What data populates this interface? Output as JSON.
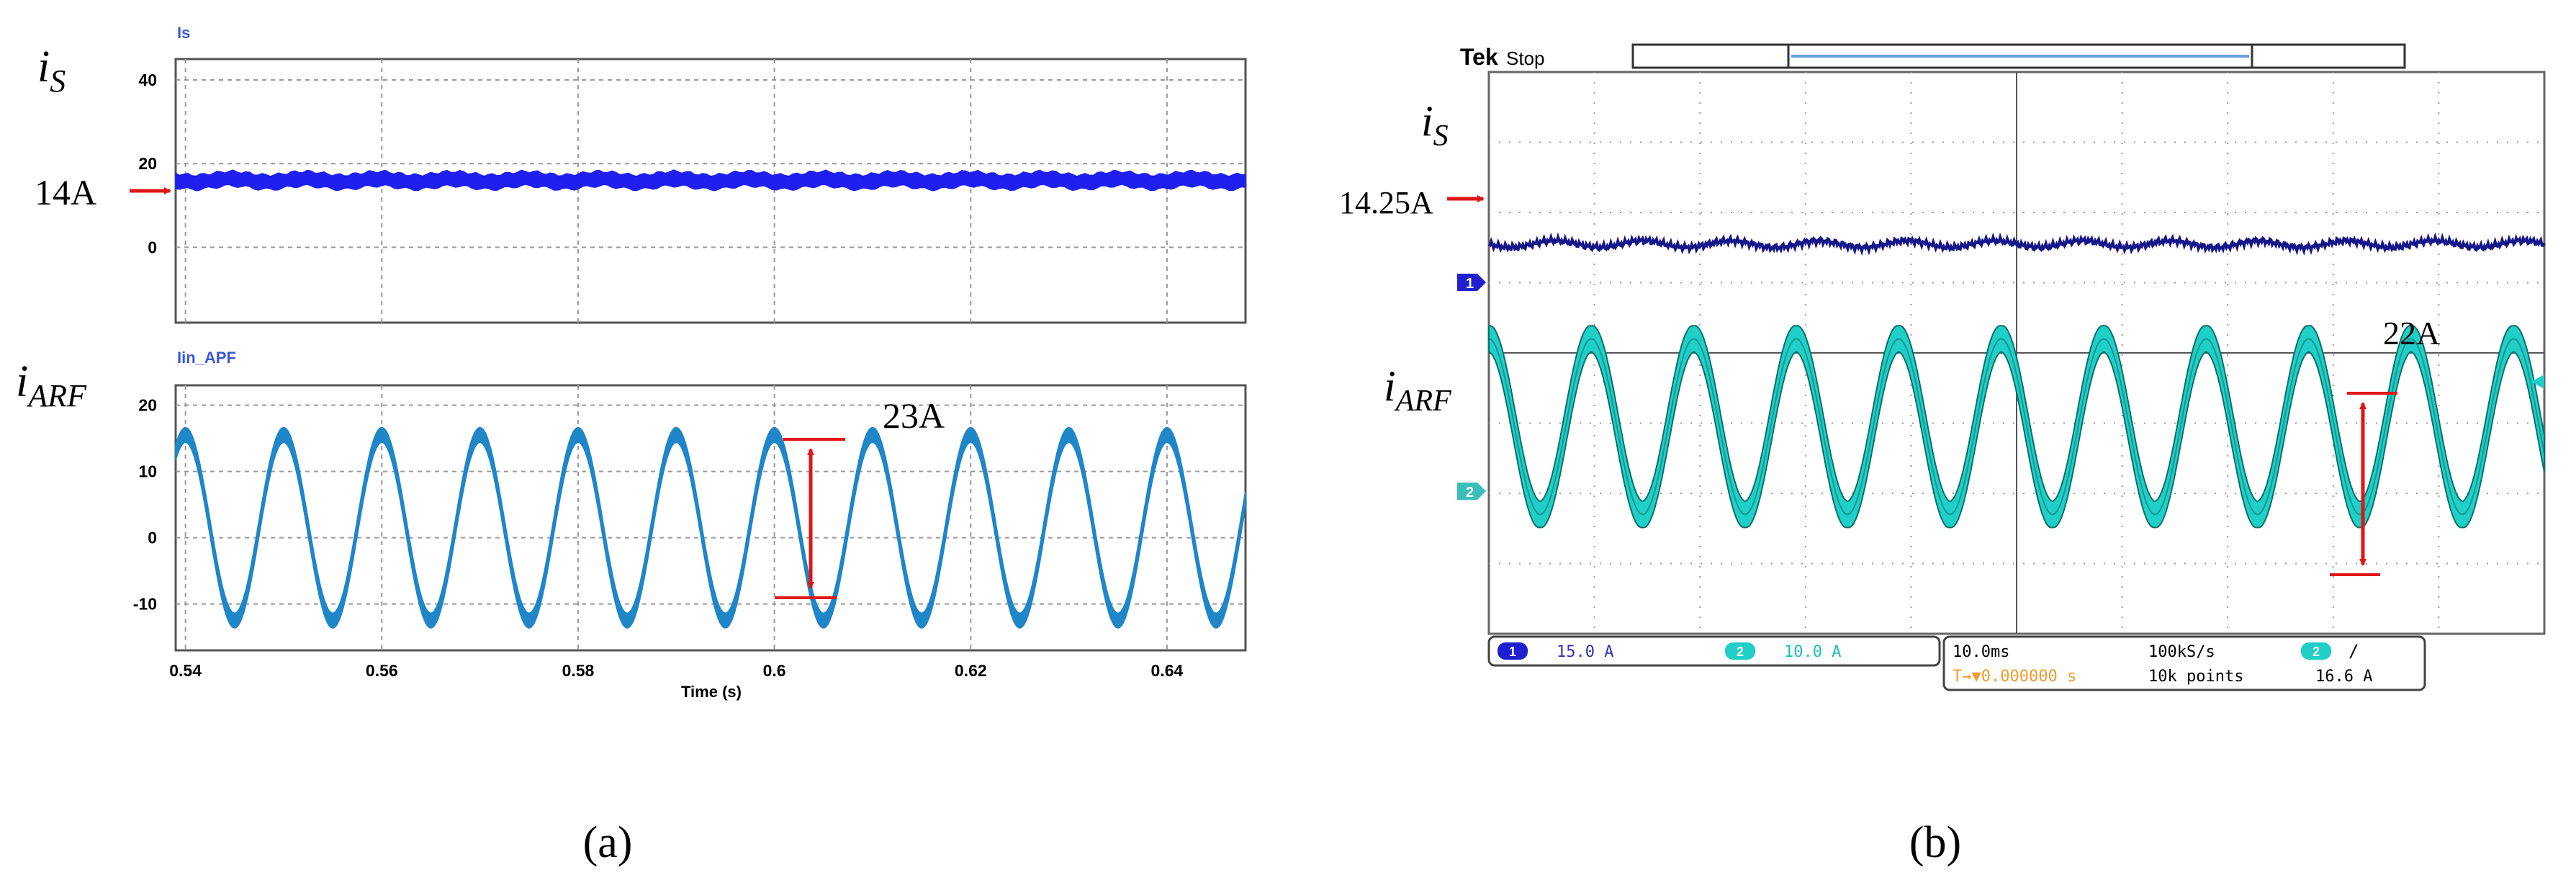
{
  "figure": {
    "panel_a_label": "(a)",
    "panel_b_label": "(b)"
  },
  "colors": {
    "sim_is": "#1f1ff0",
    "sim_iarf": "#1f86c8",
    "sim_label": "#3b59d8",
    "scope_ch1": "#16168a",
    "scope_ch2": "#1fcfc8",
    "scope_ch2_dark": "#0f6f6a",
    "scope_grid": "#9a9a9a",
    "scope_trigger": "#f29a2e",
    "annotation": "#e01515"
  },
  "panel_a": {
    "left_labels": {
      "is_main": "i",
      "is_sub": "S",
      "iarf_main": "i",
      "iarf_sub": "ARF"
    },
    "annotations": {
      "is_value": "14A",
      "iarf_pp": "23A"
    },
    "xlabel": "Time (s)"
  },
  "panel_b": {
    "left_labels": {
      "is_main": "i",
      "is_sub": "S",
      "iarf_main": "i",
      "iarf_sub": "ARF"
    },
    "annotations": {
      "is_value": "14.25A",
      "iarf_pp": "22A"
    },
    "header": {
      "brand": "Tek",
      "state": "Stop"
    },
    "markers": {
      "ch1": "1",
      "ch2": "2",
      "trigger": "T"
    },
    "readout": {
      "ch1_num": "1",
      "ch1_scale": "15.0 A",
      "ch2_num": "2",
      "ch2_scale": "10.0 A",
      "timebase": "10.0ms",
      "sample_rate": "100kS/s",
      "trig_num": "2",
      "trig_slope": "/",
      "trig_pos": "T→▼0.000000 s",
      "record": "10k points",
      "trig_level": "16.6 A"
    }
  },
  "chart_data": [
    {
      "type": "line",
      "title": "Is",
      "xlabel": "",
      "ylabel": "",
      "xlim": [
        0.539,
        0.648
      ],
      "ylim": [
        -18,
        45
      ],
      "yticks": [
        0,
        20,
        40
      ],
      "xticks": [
        0.54,
        0.56,
        0.58,
        0.6,
        0.62,
        0.64
      ],
      "grid": true,
      "series": [
        {
          "name": "Is",
          "x": [
            0.539,
            0.648
          ],
          "y": [
            16.0,
            16.0
          ],
          "ripple_band": 3.5
        }
      ]
    },
    {
      "type": "line",
      "title": "Iin_APF",
      "xlabel": "Time (s)",
      "ylabel": "",
      "xlim": [
        0.539,
        0.648
      ],
      "ylim": [
        -17,
        23
      ],
      "yticks": [
        -10,
        0,
        10,
        20
      ],
      "xticks": [
        0.54,
        0.56,
        0.58,
        0.6,
        0.62,
        0.64
      ],
      "xticklabels": [
        "0.54",
        "0.56",
        "0.58",
        "0.6",
        "0.62",
        "0.64"
      ],
      "grid": true,
      "series": [
        {
          "name": "Iin_APF",
          "function": "sine",
          "offset": 1.5,
          "amplitude": 14.0,
          "frequency_hz": 100,
          "phase_peak_x": 0.54,
          "band": 2.2
        }
      ]
    },
    {
      "type": "line",
      "title": "",
      "xlabel": "",
      "ylabel": "",
      "divisions": {
        "x": 10,
        "y": 8
      },
      "grid": true,
      "series": [
        {
          "name": "",
          "channel": "1",
          "mean_divisions": 1.55,
          "ripple_divisions": 0.08
        },
        {
          "name": "",
          "channel": "2",
          "offset_divisions": -1.05,
          "amplitude_divisions": 1.25,
          "cycles": 10.3
        }
      ]
    }
  ]
}
